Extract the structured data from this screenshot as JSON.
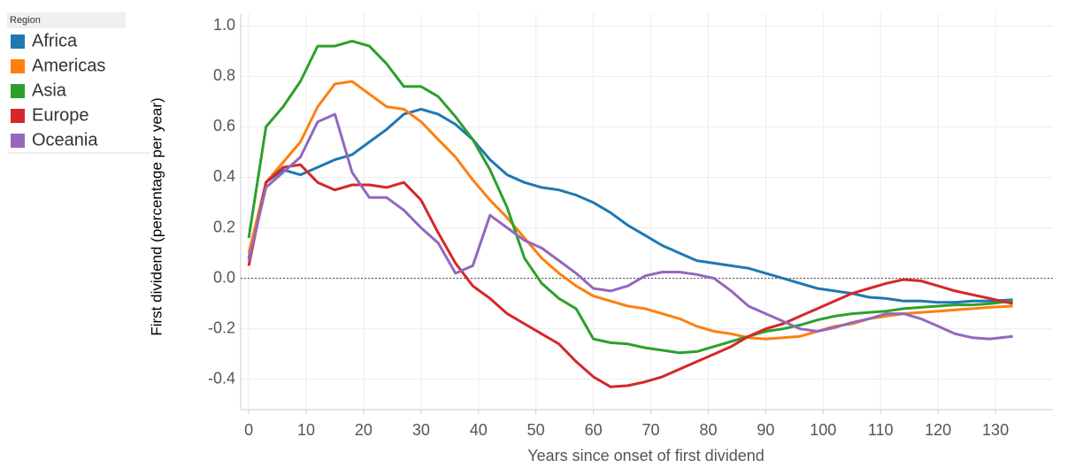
{
  "chart_data": {
    "type": "line",
    "legend_title": "Region",
    "xlabel": "Years since onset of first dividend",
    "ylabel": "First dividend (percentage per year)",
    "x": [
      0,
      3,
      6,
      9,
      12,
      15,
      18,
      21,
      24,
      27,
      30,
      33,
      36,
      39,
      42,
      45,
      48,
      51,
      54,
      57,
      60,
      63,
      66,
      69,
      72,
      75,
      78,
      81,
      84,
      87,
      90,
      93,
      96,
      99,
      102,
      105,
      108,
      111,
      114,
      117,
      120,
      123,
      126,
      129,
      133
    ],
    "series": [
      {
        "name": "Africa",
        "color": "#1f77b4",
        "values": [
          0.08,
          0.38,
          0.43,
          0.41,
          0.44,
          0.47,
          0.49,
          0.54,
          0.59,
          0.65,
          0.67,
          0.65,
          0.61,
          0.55,
          0.47,
          0.41,
          0.38,
          0.36,
          0.35,
          0.33,
          0.3,
          0.26,
          0.21,
          0.17,
          0.13,
          0.1,
          0.07,
          0.06,
          0.05,
          0.04,
          0.02,
          0.0,
          -0.02,
          -0.04,
          -0.05,
          -0.06,
          -0.075,
          -0.08,
          -0.09,
          -0.09,
          -0.095,
          -0.095,
          -0.09,
          -0.09,
          -0.085
        ]
      },
      {
        "name": "Americas",
        "color": "#ff7f0e",
        "values": [
          0.1,
          0.38,
          0.46,
          0.54,
          0.68,
          0.77,
          0.78,
          0.73,
          0.68,
          0.67,
          0.62,
          0.55,
          0.48,
          0.39,
          0.31,
          0.24,
          0.16,
          0.08,
          0.02,
          -0.03,
          -0.07,
          -0.09,
          -0.11,
          -0.12,
          -0.14,
          -0.16,
          -0.19,
          -0.21,
          -0.22,
          -0.235,
          -0.24,
          -0.235,
          -0.23,
          -0.21,
          -0.19,
          -0.18,
          -0.16,
          -0.15,
          -0.14,
          -0.135,
          -0.13,
          -0.125,
          -0.12,
          -0.115,
          -0.11
        ]
      },
      {
        "name": "Asia",
        "color": "#2ca02c",
        "values": [
          0.16,
          0.6,
          0.68,
          0.78,
          0.92,
          0.92,
          0.94,
          0.92,
          0.85,
          0.76,
          0.76,
          0.72,
          0.64,
          0.55,
          0.43,
          0.28,
          0.08,
          -0.02,
          -0.08,
          -0.12,
          -0.24,
          -0.255,
          -0.26,
          -0.275,
          -0.285,
          -0.295,
          -0.29,
          -0.27,
          -0.25,
          -0.23,
          -0.21,
          -0.2,
          -0.185,
          -0.165,
          -0.15,
          -0.14,
          -0.135,
          -0.13,
          -0.12,
          -0.115,
          -0.11,
          -0.105,
          -0.105,
          -0.1,
          -0.09
        ]
      },
      {
        "name": "Europe",
        "color": "#d62728",
        "values": [
          0.05,
          0.38,
          0.44,
          0.45,
          0.38,
          0.35,
          0.37,
          0.37,
          0.36,
          0.38,
          0.31,
          0.18,
          0.06,
          -0.03,
          -0.08,
          -0.14,
          -0.18,
          -0.22,
          -0.26,
          -0.33,
          -0.39,
          -0.43,
          -0.425,
          -0.41,
          -0.39,
          -0.36,
          -0.33,
          -0.3,
          -0.27,
          -0.23,
          -0.2,
          -0.18,
          -0.15,
          -0.12,
          -0.09,
          -0.06,
          -0.04,
          -0.02,
          -0.005,
          -0.01,
          -0.03,
          -0.05,
          -0.065,
          -0.08,
          -0.1
        ]
      },
      {
        "name": "Oceania",
        "color": "#9467bd",
        "values": [
          0.07,
          0.36,
          0.42,
          0.48,
          0.62,
          0.65,
          0.42,
          0.32,
          0.32,
          0.27,
          0.2,
          0.14,
          0.02,
          0.05,
          0.25,
          0.2,
          0.15,
          0.12,
          0.07,
          0.02,
          -0.04,
          -0.05,
          -0.03,
          0.01,
          0.025,
          0.025,
          0.015,
          0.0,
          -0.05,
          -0.11,
          -0.14,
          -0.17,
          -0.2,
          -0.21,
          -0.195,
          -0.175,
          -0.16,
          -0.14,
          -0.14,
          -0.16,
          -0.19,
          -0.22,
          -0.235,
          -0.24,
          -0.23
        ]
      }
    ],
    "xlim": [
      -1.4,
      140
    ],
    "ylim": [
      -0.52,
      1.05
    ],
    "xticks": [
      0,
      10,
      20,
      30,
      40,
      50,
      60,
      70,
      80,
      90,
      100,
      110,
      120,
      130
    ],
    "yticks": [
      {
        "value": 1,
        "label": "1.0"
      },
      0.8,
      0.6,
      0.4,
      0.2,
      {
        "value": 0,
        "label": "0.0"
      },
      -0.2,
      -0.4
    ],
    "grid": true,
    "legend": "left"
  }
}
